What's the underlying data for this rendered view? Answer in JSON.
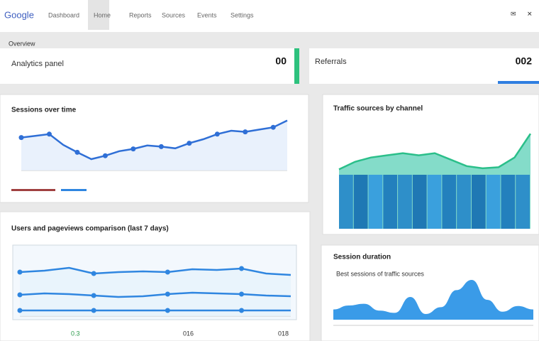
{
  "nav": {
    "logo": "Google",
    "tabs": [
      "Dashboard",
      "Home",
      "Reports",
      "Sources",
      "Events",
      "Settings"
    ]
  },
  "section_label": "Overview",
  "cards": [
    {
      "label": "Analytics panel",
      "value": "00"
    },
    {
      "label": "Referrals",
      "value": "002"
    }
  ],
  "chart_data": [
    {
      "type": "line",
      "title": "Sessions over time",
      "color": "#2f6fd6",
      "fill": "#e3eefb",
      "values": [
        58,
        61,
        64,
        45,
        32,
        20,
        26,
        34,
        38,
        44,
        42,
        39,
        48,
        55,
        64,
        70,
        68,
        72,
        76,
        88
      ],
      "ylim": [
        0,
        100
      ]
    },
    {
      "type": "bar",
      "title": "Traffic sources by channel",
      "color": "#2bbf8a",
      "bar_colors": [
        "#2e8fc9",
        "#1f78b4",
        "#3aa0dd",
        "#2380bd"
      ],
      "values": [
        55,
        62,
        66,
        68,
        70,
        68,
        70,
        64,
        58,
        56,
        57,
        66,
        88
      ],
      "bar_values": [
        50,
        50,
        50,
        50,
        50,
        50,
        50,
        50,
        50,
        50,
        50,
        50,
        50
      ],
      "ylim": [
        0,
        100
      ]
    },
    {
      "type": "line",
      "title": "Users and pageviews comparison (last 7 days)",
      "color": "#2f86e0",
      "fill": "#e6f2fb",
      "series": [
        {
          "values": [
            62,
            64,
            68,
            60,
            62,
            63,
            62,
            66,
            65,
            67,
            60,
            58
          ]
        },
        {
          "values": [
            30,
            32,
            31,
            29,
            27,
            28,
            31,
            33,
            32,
            31,
            29,
            28
          ]
        },
        {
          "values": [
            8,
            8,
            8,
            8,
            8,
            8,
            8,
            8,
            8,
            8,
            8,
            8
          ]
        }
      ],
      "ylim": [
        0,
        100
      ],
      "footer": [
        "0.3",
        "016",
        "018"
      ]
    },
    {
      "type": "area",
      "title": "Session duration",
      "subtitle": "Best sessions of traffic sources",
      "color": "#3a9be8",
      "values": [
        18,
        25,
        28,
        16,
        12,
        40,
        10,
        22,
        52,
        70,
        35,
        14,
        24,
        18
      ],
      "ylim": [
        0,
        100
      ]
    }
  ]
}
